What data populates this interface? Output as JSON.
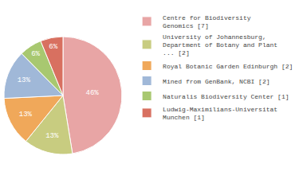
{
  "chart_data": {
    "type": "pie",
    "categories": [
      "Centre for Biodiversity\nGenomics [7]",
      "University of Johannesburg,\nDepartment of Botany and Plant\n... [2]",
      "Royal Botanic Garden Edinburgh [2]",
      "Mined from GenBank, NCBI [2]",
      "Naturalis Biodiversity Center [1]",
      "Ludwig-Maximilians-Universitat\nMunchen [1]"
    ],
    "values": [
      46,
      13,
      13,
      13,
      6,
      6
    ],
    "value_labels": [
      "46%",
      "13%",
      "13%",
      "13%",
      "6%",
      "6%"
    ],
    "colors": [
      "#e8a5a5",
      "#c8cc80",
      "#f0a85a",
      "#a0b8d8",
      "#a8c870",
      "#d87060"
    ],
    "data_labels": true,
    "legend": "right"
  }
}
